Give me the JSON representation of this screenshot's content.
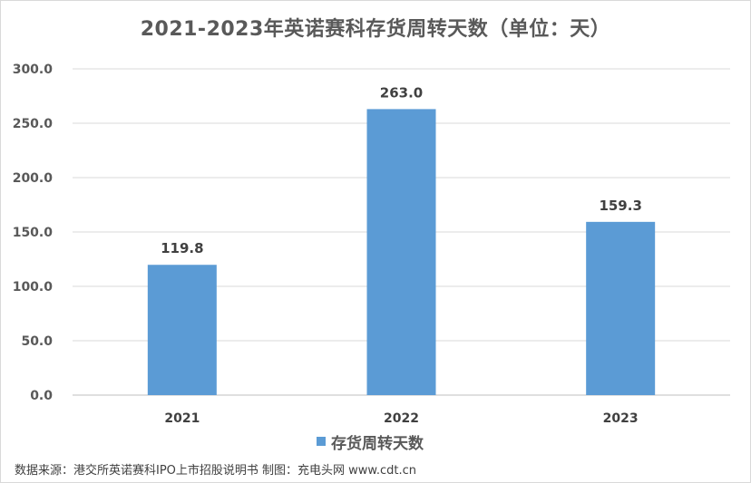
{
  "chart_data": {
    "type": "bar",
    "title": "2021-2023年英诺赛科存货周转天数（单位：天）",
    "categories": [
      "2021",
      "2022",
      "2023"
    ],
    "series": [
      {
        "name": "存货周转天数",
        "values": [
          119.8,
          263.0,
          159.3
        ]
      }
    ],
    "data_labels": [
      "119.8",
      "263.0",
      "159.3"
    ],
    "y_ticks": [
      "0.0",
      "50.0",
      "100.0",
      "150.0",
      "200.0",
      "250.0",
      "300.0"
    ],
    "ylim": [
      0,
      300
    ],
    "grid": true,
    "legend_position": "bottom",
    "bar_color": "#5b9bd5"
  },
  "footer": {
    "source": "数据来源：港交所英诺赛科IPO上市招股说明书 制图：充电头网 www.cdt.cn"
  }
}
